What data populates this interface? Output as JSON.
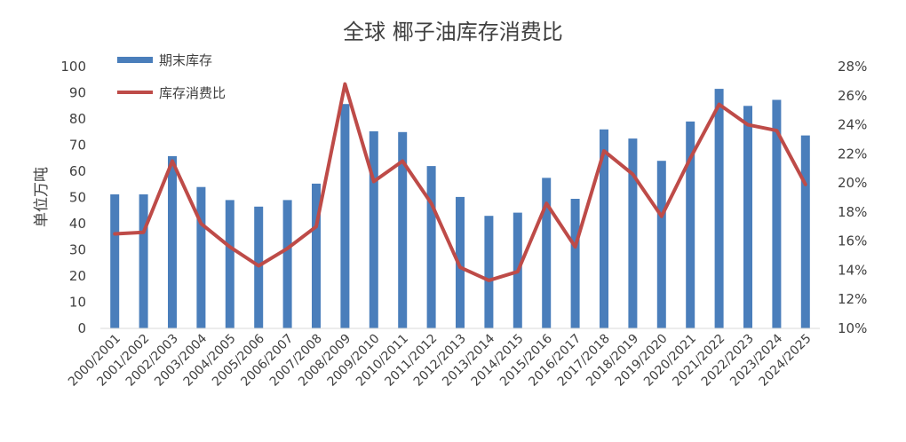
{
  "chart_data": {
    "type": "bar",
    "title": "全球 椰子油库存消费比",
    "ylabel": "单位万吨",
    "ylim": [
      0,
      100
    ],
    "y2lim": [
      0.1,
      0.28
    ],
    "y_ticks": [
      0,
      10,
      20,
      30,
      40,
      50,
      60,
      70,
      80,
      90,
      100
    ],
    "y2_ticks": [
      "10%",
      "12%",
      "14%",
      "16%",
      "18%",
      "20%",
      "22%",
      "24%",
      "26%",
      "28%"
    ],
    "categories": [
      "2000/2001",
      "2001/2002",
      "2002/2003",
      "2003/2004",
      "2004/2005",
      "2005/2006",
      "2006/2007",
      "2007/2008",
      "2008/2009",
      "2009/2010",
      "2010/2011",
      "2011/2012",
      "2012/2013",
      "2013/2014",
      "2014/2015",
      "2015/2016",
      "2016/2017",
      "2017/2018",
      "2018/2019",
      "2019/2020",
      "2020/2021",
      "2021/2022",
      "2022/2023",
      "2023/2024",
      "2024/2025"
    ],
    "series": [
      {
        "name": "期末库存",
        "type": "bar",
        "axis": "left",
        "color": "#4a7ebb",
        "values": [
          51.2,
          51.2,
          65.8,
          54.0,
          49.0,
          46.5,
          49.0,
          55.3,
          85.7,
          75.3,
          75.0,
          62.0,
          50.2,
          43.0,
          44.2,
          57.5,
          49.5,
          76.0,
          72.5,
          64.0,
          79.0,
          91.5,
          85.0,
          87.3,
          73.7
        ]
      },
      {
        "name": "库存消费比",
        "type": "line",
        "axis": "right",
        "color": "#be4b48",
        "values": [
          0.165,
          0.166,
          0.215,
          0.172,
          0.156,
          0.143,
          0.155,
          0.17,
          0.268,
          0.201,
          0.215,
          0.186,
          0.142,
          0.133,
          0.139,
          0.186,
          0.156,
          0.222,
          0.206,
          0.177,
          0.217,
          0.254,
          0.24,
          0.236,
          0.199
        ]
      }
    ],
    "legend_position": "top-left",
    "grid": false
  }
}
